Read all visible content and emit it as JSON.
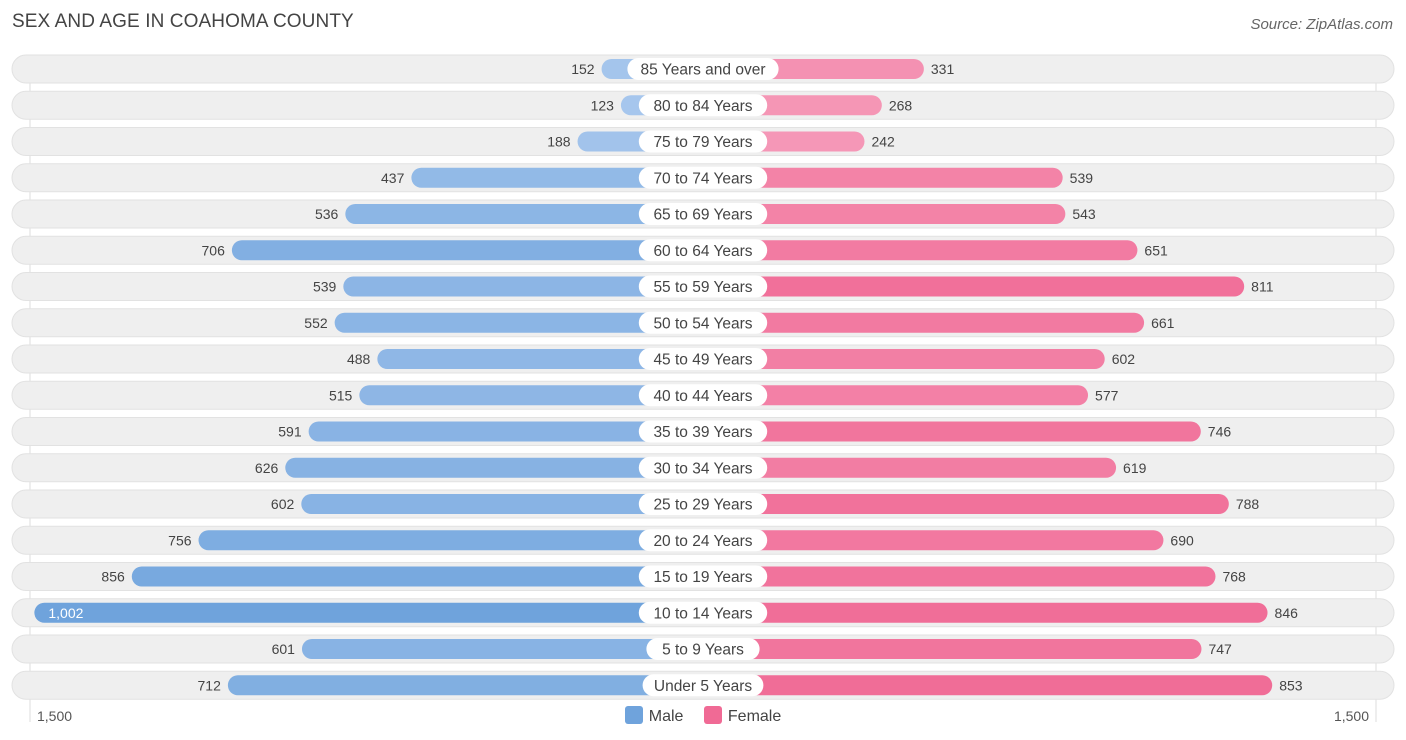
{
  "title": "SEX AND AGE IN COAHOMA COUNTY",
  "source": "Source: ZipAtlas.com",
  "colors": {
    "male": "#6fa3dc",
    "male_light": "#aecbef",
    "female": "#f06a95",
    "female_light": "#f7a8c3",
    "row_bg": "#efefef"
  },
  "legend": {
    "male_label": "Male",
    "female_label": "Female"
  },
  "axis": {
    "left_label": "1,500",
    "right_label": "1,500"
  },
  "chart_data": {
    "type": "bar",
    "orientation": "horizontal-diverging",
    "title": "SEX AND AGE IN COAHOMA COUNTY",
    "xlim": [
      -1500,
      1500
    ],
    "categories": [
      "85 Years and over",
      "80 to 84 Years",
      "75 to 79 Years",
      "70 to 74 Years",
      "65 to 69 Years",
      "60 to 64 Years",
      "55 to 59 Years",
      "50 to 54 Years",
      "45 to 49 Years",
      "40 to 44 Years",
      "35 to 39 Years",
      "30 to 34 Years",
      "25 to 29 Years",
      "20 to 24 Years",
      "15 to 19 Years",
      "10 to 14 Years",
      "5 to 9 Years",
      "Under 5 Years"
    ],
    "series": [
      {
        "name": "Male",
        "values": [
          152,
          123,
          188,
          437,
          536,
          706,
          539,
          552,
          488,
          515,
          591,
          626,
          602,
          756,
          856,
          1002,
          601,
          712
        ],
        "labels": [
          "152",
          "123",
          "188",
          "437",
          "536",
          "706",
          "539",
          "552",
          "488",
          "515",
          "591",
          "626",
          "602",
          "756",
          "856",
          "1,002",
          "601",
          "712"
        ]
      },
      {
        "name": "Female",
        "values": [
          331,
          268,
          242,
          539,
          543,
          651,
          811,
          661,
          602,
          577,
          746,
          619,
          788,
          690,
          768,
          846,
          747,
          853
        ],
        "labels": [
          "331",
          "268",
          "242",
          "539",
          "543",
          "651",
          "811",
          "661",
          "602",
          "577",
          "746",
          "619",
          "788",
          "690",
          "768",
          "846",
          "747",
          "853"
        ]
      }
    ],
    "legend_position": "bottom-center"
  }
}
